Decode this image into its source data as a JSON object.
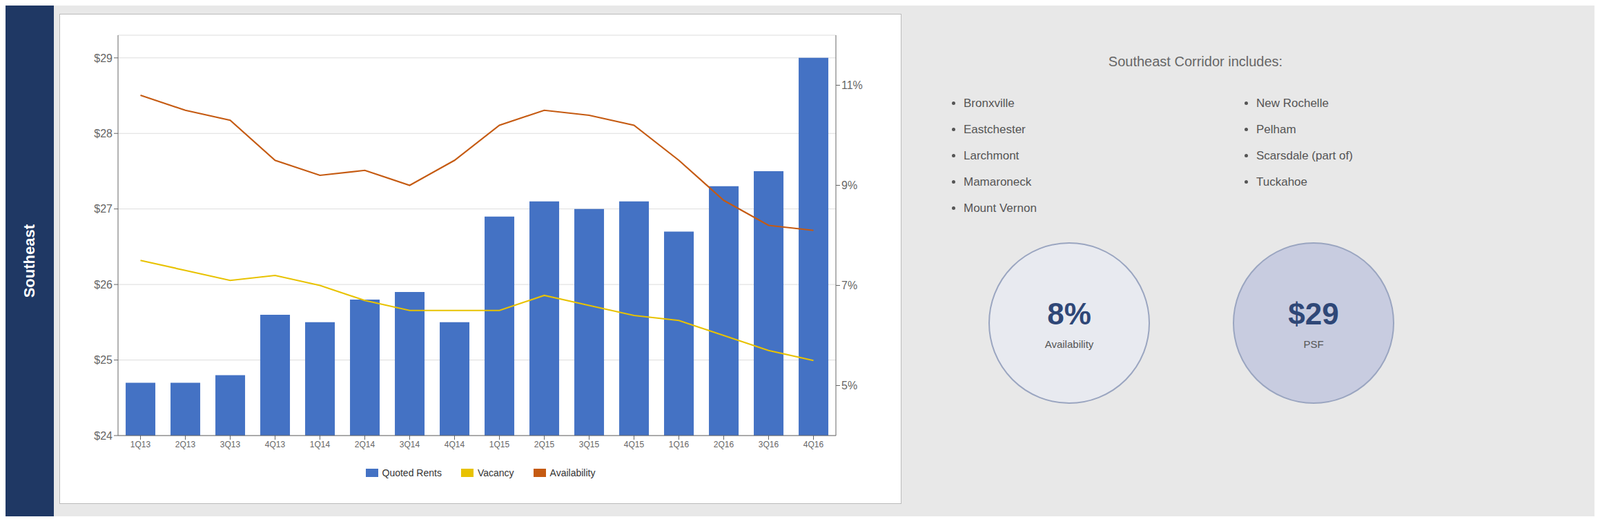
{
  "chart_data": {
    "type": "bar",
    "categories": [
      "1Q13",
      "2Q13",
      "3Q13",
      "4Q13",
      "1Q14",
      "2Q14",
      "3Q14",
      "4Q14",
      "1Q15",
      "2Q15",
      "3Q15",
      "4Q15",
      "1Q16",
      "2Q16",
      "3Q16",
      "4Q16"
    ],
    "series": [
      {
        "name": "Quoted Rents",
        "type": "bar",
        "color": "#4472C4",
        "values": [
          24.7,
          24.7,
          24.8,
          25.6,
          25.5,
          25.8,
          25.9,
          25.5,
          26.9,
          27.1,
          27.0,
          27.1,
          26.7,
          27.3,
          27.5,
          29.0
        ]
      },
      {
        "name": "Vacancy",
        "type": "line",
        "color": "#E8C200",
        "axis": "y2",
        "values": [
          7.5,
          7.3,
          7.1,
          7.2,
          7.0,
          6.7,
          6.5,
          6.5,
          6.5,
          6.8,
          6.6,
          6.4,
          6.3,
          6.0,
          5.7,
          5.5
        ]
      },
      {
        "name": "Availability",
        "type": "line",
        "color": "#C55A11",
        "axis": "y2",
        "values": [
          10.8,
          10.5,
          10.3,
          9.5,
          9.2,
          9.3,
          9.0,
          9.5,
          10.2,
          10.5,
          10.4,
          10.2,
          9.5,
          8.7,
          8.2,
          8.1
        ]
      }
    ],
    "ylim": [
      24,
      29.3
    ],
    "yticks": [
      {
        "value": 24,
        "label": "$24"
      },
      {
        "value": 25,
        "label": "$25"
      },
      {
        "value": 26,
        "label": "$26"
      },
      {
        "value": 27,
        "label": "$27"
      },
      {
        "value": 28,
        "label": "$28"
      },
      {
        "value": 29,
        "label": "$29"
      }
    ],
    "y2lim": [
      4,
      12
    ],
    "y2ticks": [
      {
        "value": 5,
        "label": "5%"
      },
      {
        "value": 7,
        "label": "7%"
      },
      {
        "value": 9,
        "label": "9%"
      },
      {
        "value": 11,
        "label": "11%"
      }
    ],
    "grid": true,
    "legend": "bottom",
    "annotations": [
      "Southeast",
      "Southeast Corridor includes:",
      [
        "Bronxville",
        "Eastchester",
        "Larchmont",
        "Mamaroneck",
        "Mount Vernon"
      ],
      [
        "New Rochelle",
        "Pelham",
        "Scarsdale (part of)",
        "Tuckahoe"
      ],
      [
        "8%",
        "Availability"
      ],
      [
        "$29",
        "PSF"
      ]
    ]
  }
}
